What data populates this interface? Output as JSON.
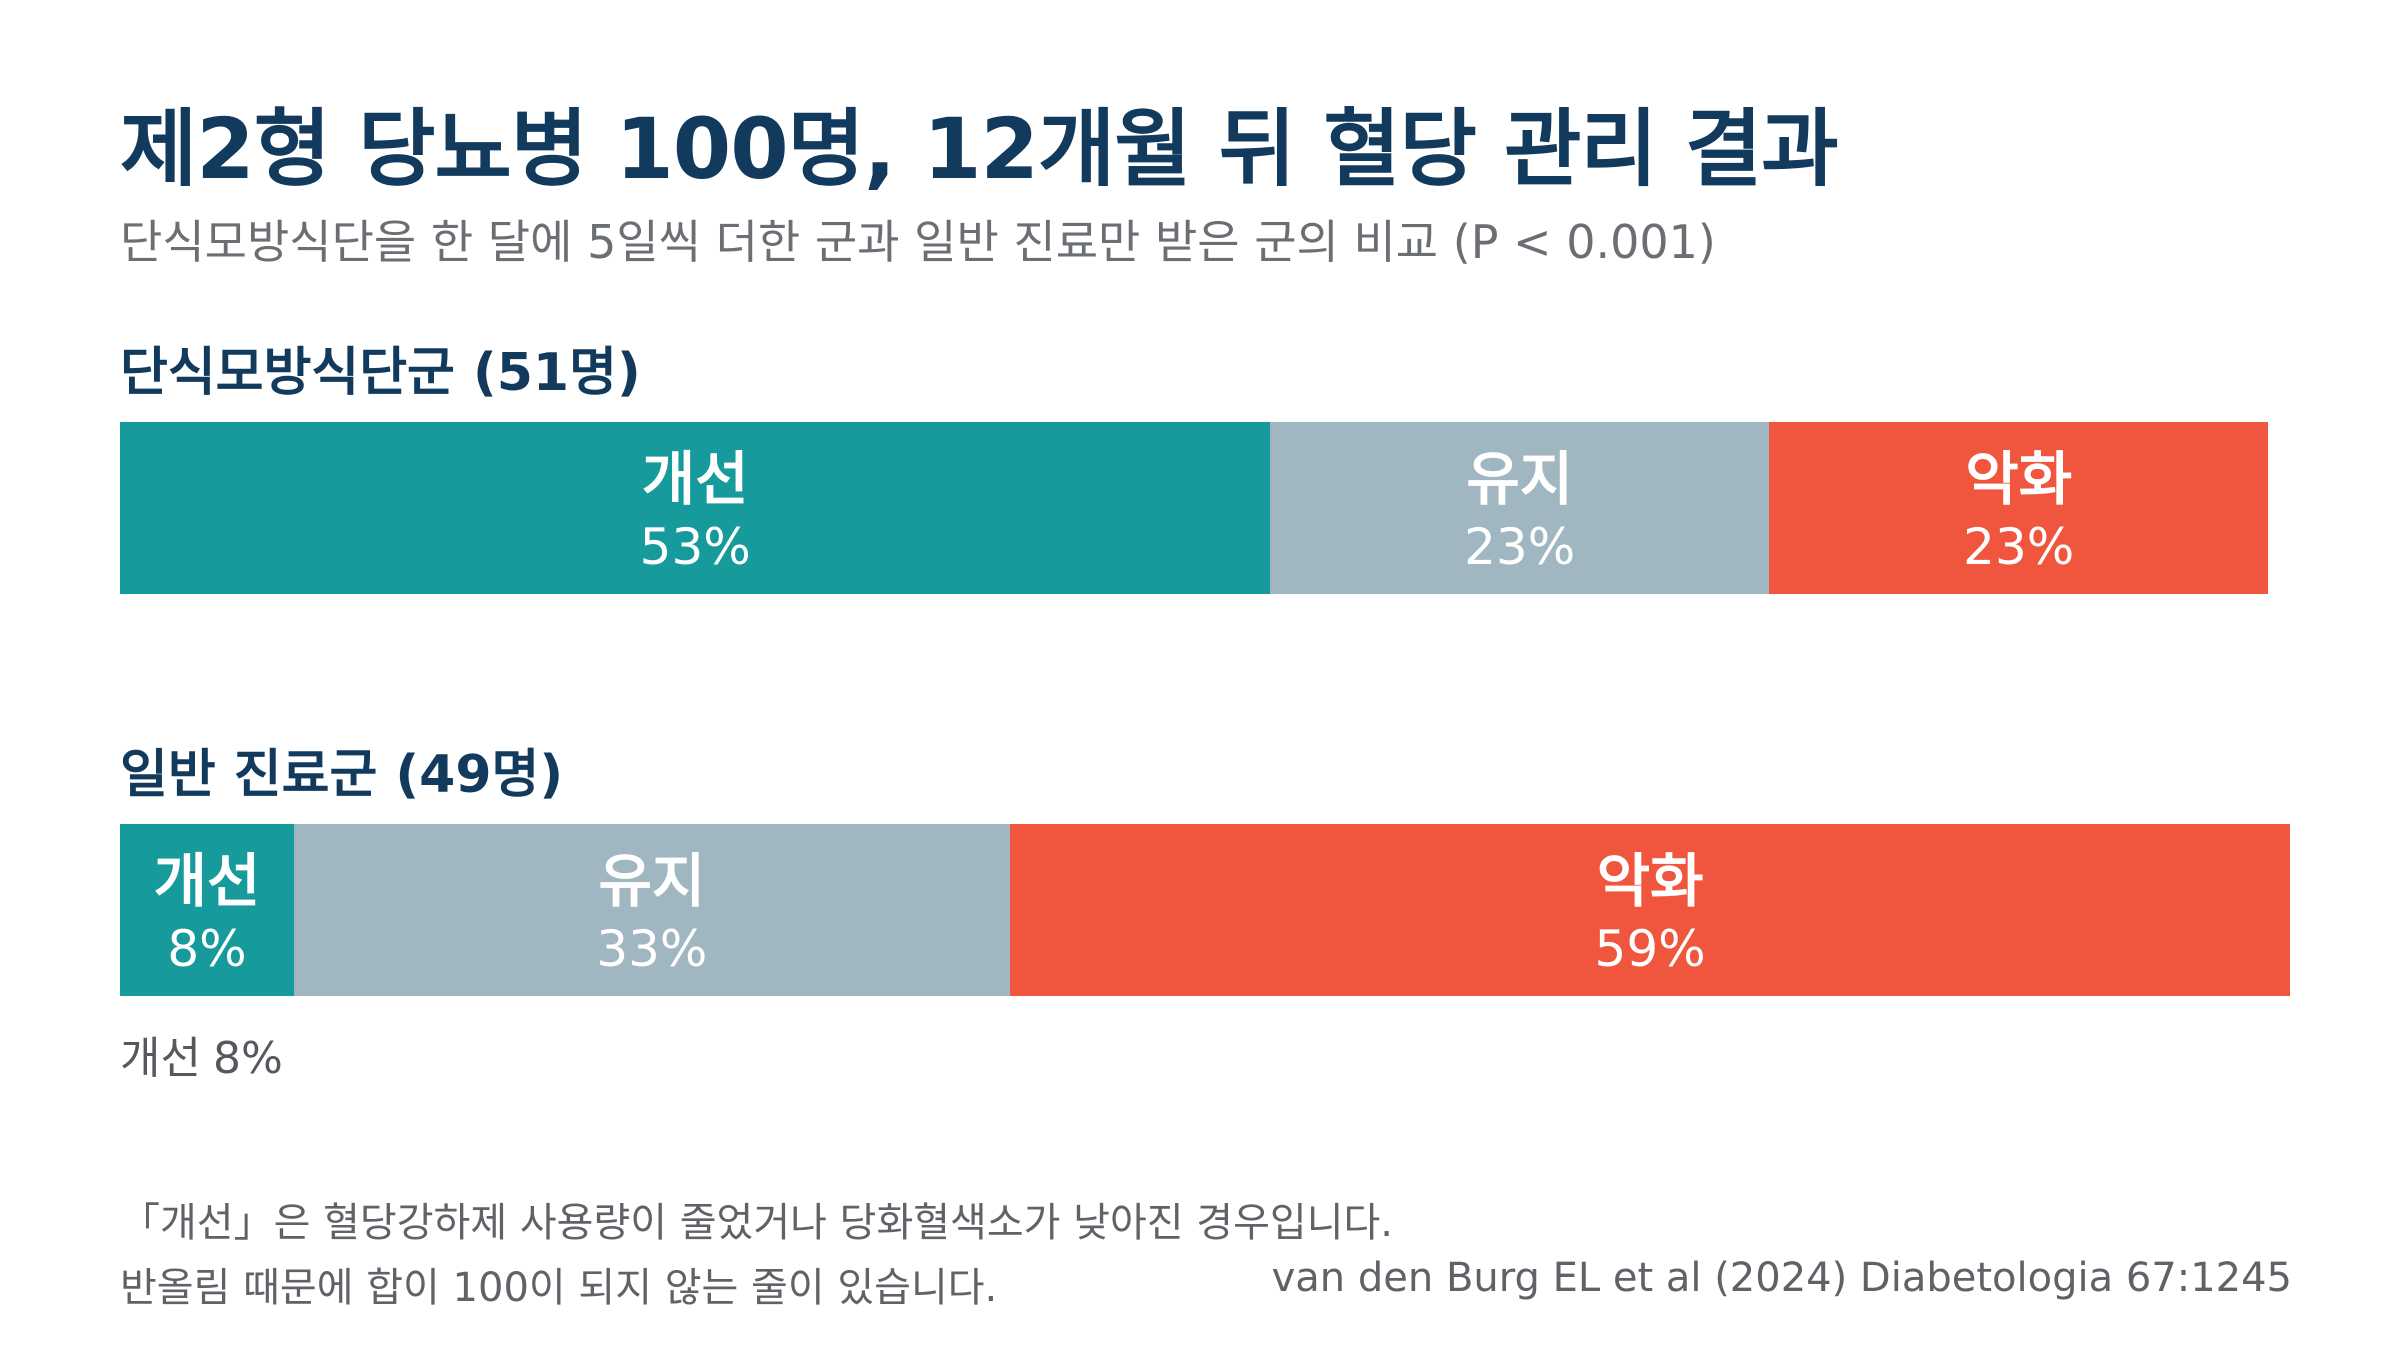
{
  "title": "제2형 당뇨병 100명, 12개월 뒤 혈당 관리 결과",
  "subtitle": "단식모방식단을 한 달에 5일씩 더한 군과 일반 진료만 받은 군의 비교 (P < 0.001)",
  "colors": {
    "improved": "#169a9c",
    "maintained": "#a0b6c1",
    "worsened": "#ef563d",
    "title": "#123a5c",
    "subtitle": "#6b6f74"
  },
  "chart_data": {
    "type": "bar",
    "orientation": "horizontal",
    "stacked": true,
    "unit": "%",
    "groups": [
      {
        "label": "단식모방식단군 (51명)",
        "segments": [
          {
            "name": "개선",
            "value": 53,
            "display": "53%"
          },
          {
            "name": "유지",
            "value": 23,
            "display": "23%"
          },
          {
            "name": "악화",
            "value": 23,
            "display": "23%"
          }
        ]
      },
      {
        "label": "일반 진료군 (49명)",
        "segments": [
          {
            "name": "개선",
            "value": 8,
            "display": "8%"
          },
          {
            "name": "유지",
            "value": 33,
            "display": "33%"
          },
          {
            "name": "악화",
            "value": 59,
            "display": "59%"
          }
        ]
      }
    ]
  },
  "notes": [
    "「개선」은 혈당강하제 사용량이 줄었거나 당화혈색소가 낮아진 경우입니다.",
    "반올림 때문에 합이 100이 되지 않는 줄이 있습니다."
  ],
  "source": "van den Burg EL et al (2024) Diabetologia 67:1245"
}
